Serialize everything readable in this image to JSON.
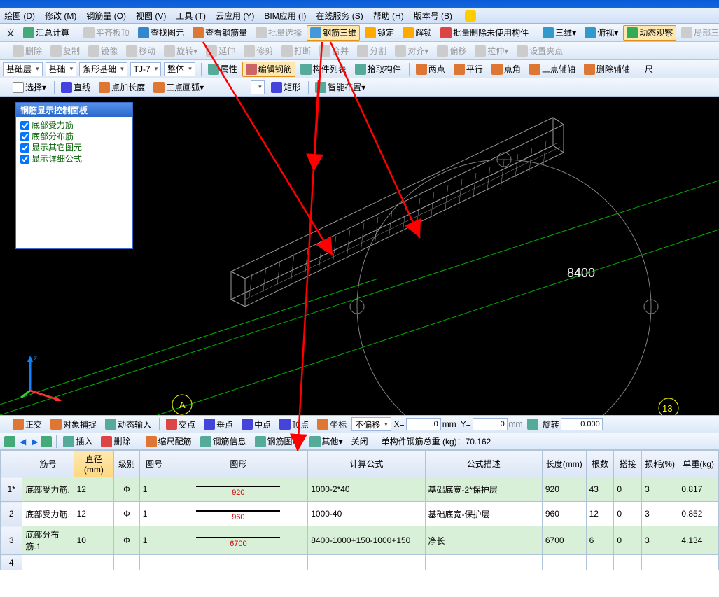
{
  "menus": [
    "义",
    "▤ 汇总计算",
    "绘图 (D)",
    "修改 (M)",
    "钢筋量 (O)",
    "视图 (V)",
    "工具 (T)",
    "云应用 (Y)",
    "BIM应用 (I)",
    "在线服务 (S)",
    "帮助 (H)",
    "版本号 (B)"
  ],
  "menubar2": [
    "汇总计算",
    "平齐板顶",
    "查找图元",
    "查看钢筋量",
    "批量选择",
    "钢筋三维",
    "锁定",
    "解锁",
    "批量删除未使用构件",
    "三维",
    "俯视",
    "动态观察",
    "局部三维"
  ],
  "menubar3": [
    "删除",
    "复制",
    "镜像",
    "移动",
    "旋转",
    "延伸",
    "修剪",
    "打断",
    "合并",
    "分割",
    "对齐",
    "偏移",
    "拉伸",
    "设置夹点"
  ],
  "dd1": "基础层",
  "dd2": "基础",
  "dd3": "条形基础",
  "dd4": "TJ-7",
  "dd5": "整体",
  "tb4": [
    "属性",
    "编辑钢筋",
    "构件列表",
    "拾取构件"
  ],
  "tb4b": [
    "两点",
    "平行",
    "点角",
    "三点辅轴",
    "删除辅轴",
    "尺"
  ],
  "tb5": [
    "选择",
    "直线",
    "点加长度",
    "三点画弧"
  ],
  "tb5b": [
    "矩形",
    "智能布置"
  ],
  "panel_title": "钢筋显示控制面板",
  "checks": [
    "底部受力筋",
    "底部分布筋",
    "显示其它图元",
    "显示详细公式"
  ],
  "dim_label": "8400",
  "status": [
    "正交",
    "对象捕捉",
    "动态输入",
    "交点",
    "垂点",
    "中点",
    "顶点",
    "坐标"
  ],
  "status_dd": "不偏移",
  "xlabel": "X=",
  "ylabel": "Y=",
  "unit": "mm",
  "rotlabel": "旋转",
  "xval": "0",
  "yval": "0",
  "rotval": "0.000",
  "low": [
    "插入",
    "删除",
    "缩尺配筋",
    "钢筋信息",
    "钢筋图库",
    "其他",
    "关闭"
  ],
  "total_label": "单构件钢筋总重 (kg)：",
  "total_val": "70.162",
  "cols": [
    "筋号",
    "直径(mm)",
    "级别",
    "图号",
    "图形",
    "计算公式",
    "公式描述",
    "长度(mm)",
    "根数",
    "搭接",
    "损耗(%)",
    "单重(kg)"
  ],
  "rows": [
    {
      "no": "1*",
      "name": "底部受力筋.",
      "dia": "12",
      "lvl": "Φ",
      "tu": "1",
      "shape": "920",
      "calc": "1000-2*40",
      "desc": "基础底宽-2*保护层",
      "len": "920",
      "gen": "43",
      "da": "0",
      "sun": "3",
      "wt": "0.817"
    },
    {
      "no": "2",
      "name": "底部受力筋.",
      "dia": "12",
      "lvl": "Φ",
      "tu": "1",
      "shape": "960",
      "calc": "1000-40",
      "desc": "基础底宽-保护层",
      "len": "960",
      "gen": "12",
      "da": "0",
      "sun": "3",
      "wt": "0.852"
    },
    {
      "no": "3",
      "name": "底部分布筋.1",
      "dia": "10",
      "lvl": "Φ",
      "tu": "1",
      "shape": "6700",
      "calc": "8400-1000+150-1000+150",
      "desc": "净长",
      "len": "6700",
      "gen": "6",
      "da": "0",
      "sun": "3",
      "wt": "4.134"
    },
    {
      "no": "4",
      "name": "",
      "dia": "",
      "lvl": "",
      "tu": "",
      "shape": "",
      "calc": "",
      "desc": "",
      "len": "",
      "gen": "",
      "da": "",
      "sun": "",
      "wt": ""
    }
  ],
  "colors": {
    "arrow": "#ff0000",
    "wire": "#9a9a9a",
    "ground": "#00b000",
    "accent": "#ff0000",
    "yellow": "#ffff00",
    "node": "#ffffff",
    "axisA": "#ffff00"
  }
}
